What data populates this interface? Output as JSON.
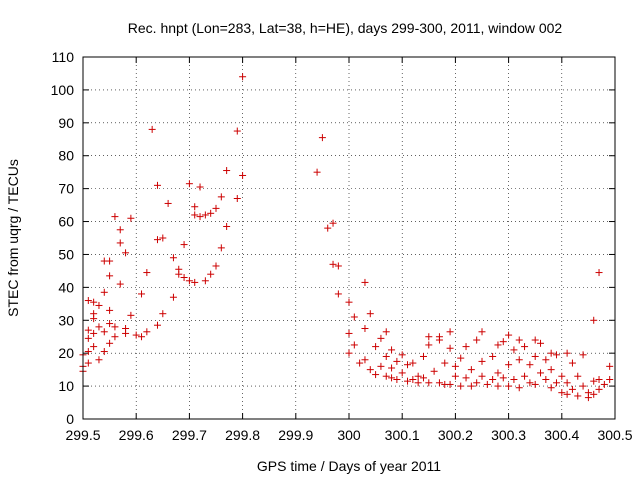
{
  "chart_data": {
    "type": "scatter",
    "title": "Rec. hnpt (Lon=283, Lat=38, h=HE), days 299-300, 2011, window 002",
    "xlabel": "GPS time / Days of year 2011",
    "ylabel": "STEC from uqrg / TECUs",
    "xlim": [
      299.5,
      300.5
    ],
    "ylim": [
      0,
      110
    ],
    "grid": true,
    "marker": "plus",
    "marker_color": "#cc0000",
    "x_ticks": [
      299.5,
      299.6,
      299.7,
      299.8,
      299.9,
      300,
      300.1,
      300.2,
      300.3,
      300.4,
      300.5
    ],
    "x_tick_labels": [
      "299.5",
      "299.6",
      "299.7",
      "299.8",
      "299.9",
      "300",
      "300.1",
      "300.2",
      "300.3",
      "300.4",
      "300.5"
    ],
    "y_ticks": [
      0,
      10,
      20,
      30,
      40,
      50,
      60,
      70,
      80,
      90,
      100,
      110
    ],
    "y_tick_labels": [
      "0",
      "10",
      "20",
      "30",
      "40",
      "50",
      "60",
      "70",
      "80",
      "90",
      "100",
      "110"
    ],
    "series": [
      {
        "name": "STEC",
        "points": [
          [
            299.5,
            14.5
          ],
          [
            299.5,
            16
          ],
          [
            299.5,
            19.5
          ],
          [
            299.51,
            17
          ],
          [
            299.51,
            20.5
          ],
          [
            299.51,
            24.5
          ],
          [
            299.51,
            27
          ],
          [
            299.51,
            36
          ],
          [
            299.52,
            22
          ],
          [
            299.52,
            26
          ],
          [
            299.52,
            30.5
          ],
          [
            299.52,
            32
          ],
          [
            299.52,
            35.5
          ],
          [
            299.53,
            18
          ],
          [
            299.53,
            28
          ],
          [
            299.53,
            34.5
          ],
          [
            299.54,
            20.5
          ],
          [
            299.54,
            26.5
          ],
          [
            299.54,
            38.5
          ],
          [
            299.54,
            48
          ],
          [
            299.55,
            23
          ],
          [
            299.55,
            29
          ],
          [
            299.55,
            33
          ],
          [
            299.55,
            43.5
          ],
          [
            299.55,
            48
          ],
          [
            299.56,
            28
          ],
          [
            299.56,
            61.5
          ],
          [
            299.56,
            25
          ],
          [
            299.57,
            41
          ],
          [
            299.57,
            53.5
          ],
          [
            299.57,
            57.5
          ],
          [
            299.58,
            26
          ],
          [
            299.58,
            27.5
          ],
          [
            299.58,
            50.5
          ],
          [
            299.59,
            61
          ],
          [
            299.59,
            31.5
          ],
          [
            299.6,
            25.5
          ],
          [
            299.61,
            25
          ],
          [
            299.61,
            38
          ],
          [
            299.62,
            26.5
          ],
          [
            299.62,
            44.5
          ],
          [
            299.63,
            88
          ],
          [
            299.64,
            28.5
          ],
          [
            299.64,
            54.5
          ],
          [
            299.64,
            71
          ],
          [
            299.65,
            55
          ],
          [
            299.65,
            32
          ],
          [
            299.66,
            65.5
          ],
          [
            299.67,
            37
          ],
          [
            299.67,
            49
          ],
          [
            299.68,
            44
          ],
          [
            299.68,
            45.5
          ],
          [
            299.69,
            43
          ],
          [
            299.69,
            53
          ],
          [
            299.7,
            71.5
          ],
          [
            299.7,
            42
          ],
          [
            299.71,
            62
          ],
          [
            299.71,
            64.5
          ],
          [
            299.71,
            41.5
          ],
          [
            299.72,
            70.5
          ],
          [
            299.72,
            61.5
          ],
          [
            299.73,
            62
          ],
          [
            299.73,
            42
          ],
          [
            299.74,
            44
          ],
          [
            299.74,
            62.5
          ],
          [
            299.75,
            46.5
          ],
          [
            299.75,
            64
          ],
          [
            299.76,
            52
          ],
          [
            299.76,
            67.5
          ],
          [
            299.77,
            58.5
          ],
          [
            299.77,
            75.5
          ],
          [
            299.79,
            87.5
          ],
          [
            299.79,
            67
          ],
          [
            299.8,
            74
          ],
          [
            299.8,
            104
          ],
          [
            299.94,
            75
          ],
          [
            299.95,
            85.5
          ],
          [
            299.96,
            58
          ],
          [
            299.97,
            59.5
          ],
          [
            299.97,
            47
          ],
          [
            299.98,
            46.5
          ],
          [
            299.98,
            38
          ],
          [
            300.0,
            35.5
          ],
          [
            300.0,
            26
          ],
          [
            300.0,
            20
          ],
          [
            300.01,
            31
          ],
          [
            300.01,
            22.5
          ],
          [
            300.02,
            17
          ],
          [
            300.03,
            41.5
          ],
          [
            300.03,
            27.5
          ],
          [
            300.03,
            18
          ],
          [
            300.04,
            15
          ],
          [
            300.04,
            32
          ],
          [
            300.05,
            22
          ],
          [
            300.05,
            13.5
          ],
          [
            300.06,
            16
          ],
          [
            300.06,
            24.5
          ],
          [
            300.07,
            19
          ],
          [
            300.07,
            13
          ],
          [
            300.07,
            26.5
          ],
          [
            300.08,
            12.5
          ],
          [
            300.08,
            15.5
          ],
          [
            300.08,
            21
          ],
          [
            300.09,
            17.5
          ],
          [
            300.09,
            12
          ],
          [
            300.1,
            19.5
          ],
          [
            300.1,
            14
          ],
          [
            300.11,
            11.5
          ],
          [
            300.11,
            16.5
          ],
          [
            300.12,
            12
          ],
          [
            300.12,
            17
          ],
          [
            300.13,
            13
          ],
          [
            300.13,
            11
          ],
          [
            300.14,
            19
          ],
          [
            300.14,
            12.5
          ],
          [
            300.15,
            11
          ],
          [
            300.15,
            25
          ],
          [
            300.15,
            22.5
          ],
          [
            300.16,
            14.5
          ],
          [
            300.17,
            11
          ],
          [
            300.17,
            24
          ],
          [
            300.17,
            25
          ],
          [
            300.18,
            10.5
          ],
          [
            300.18,
            17
          ],
          [
            300.19,
            21.5
          ],
          [
            300.19,
            26.5
          ],
          [
            300.19,
            10.5
          ],
          [
            300.2,
            16
          ],
          [
            300.2,
            13
          ],
          [
            300.21,
            10
          ],
          [
            300.21,
            18.5
          ],
          [
            300.22,
            12.5
          ],
          [
            300.22,
            22
          ],
          [
            300.23,
            10
          ],
          [
            300.23,
            15
          ],
          [
            300.24,
            24
          ],
          [
            300.24,
            11
          ],
          [
            300.25,
            13
          ],
          [
            300.25,
            26.5
          ],
          [
            300.25,
            17.5
          ],
          [
            300.26,
            10.5
          ],
          [
            300.27,
            19
          ],
          [
            300.27,
            12
          ],
          [
            300.28,
            22.5
          ],
          [
            300.28,
            14
          ],
          [
            300.28,
            10
          ],
          [
            300.29,
            23.5
          ],
          [
            300.29,
            12.5
          ],
          [
            300.3,
            25.5
          ],
          [
            300.3,
            16.5
          ],
          [
            300.3,
            10
          ],
          [
            300.31,
            21
          ],
          [
            300.31,
            12
          ],
          [
            300.32,
            18
          ],
          [
            300.32,
            24
          ],
          [
            300.32,
            9.5
          ],
          [
            300.33,
            13
          ],
          [
            300.33,
            22
          ],
          [
            300.34,
            11
          ],
          [
            300.34,
            16.5
          ],
          [
            300.35,
            24
          ],
          [
            300.35,
            19
          ],
          [
            300.35,
            10.5
          ],
          [
            300.36,
            14
          ],
          [
            300.36,
            23
          ],
          [
            300.37,
            12
          ],
          [
            300.37,
            18
          ],
          [
            300.38,
            9.5
          ],
          [
            300.38,
            20
          ],
          [
            300.38,
            15
          ],
          [
            300.39,
            11
          ],
          [
            300.39,
            19.5
          ],
          [
            300.4,
            13
          ],
          [
            300.4,
            8
          ],
          [
            300.41,
            20
          ],
          [
            300.41,
            11
          ],
          [
            300.41,
            7.5
          ],
          [
            300.42,
            17
          ],
          [
            300.42,
            9
          ],
          [
            300.43,
            13
          ],
          [
            300.43,
            7
          ],
          [
            300.44,
            19.5
          ],
          [
            300.44,
            10
          ],
          [
            300.45,
            8
          ],
          [
            300.45,
            6.5
          ],
          [
            300.46,
            11.5
          ],
          [
            300.46,
            7.5
          ],
          [
            300.46,
            30
          ],
          [
            300.47,
            12
          ],
          [
            300.47,
            9
          ],
          [
            300.47,
            44.5
          ],
          [
            300.48,
            10.5
          ],
          [
            300.49,
            16
          ],
          [
            300.49,
            12
          ]
        ]
      }
    ]
  }
}
